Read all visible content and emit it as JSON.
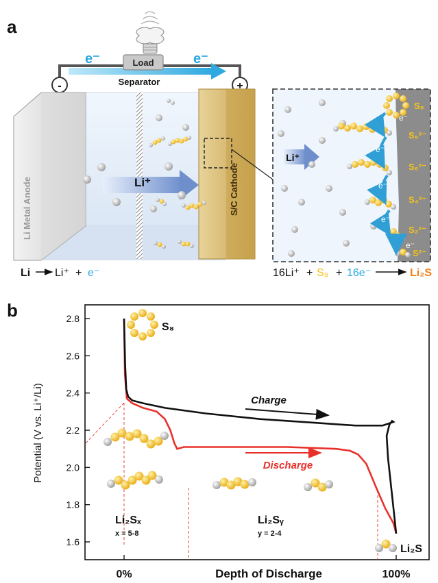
{
  "panel_a": {
    "label": "a",
    "electron_left": "e⁻",
    "electron_right": "e⁻",
    "load": "Load",
    "minus": "-",
    "plus": "+",
    "separator": "Separator",
    "anode": "Li Metal Anode",
    "cathode": "S/C Cathode",
    "li_ion": "Li⁺",
    "li_ion_zoom": "Li⁺",
    "eq_left": {
      "li": "Li",
      "li_ion": "Li⁺",
      "plus": "+",
      "e": "e⁻"
    },
    "eq_right": {
      "coef": "16Li⁺",
      "plus1": "+",
      "s8": "S₈",
      "plus2": "+",
      "e": "16e⁻",
      "product": "Li₂S"
    },
    "zoom_species": [
      "S₈",
      "S₈²⁻",
      "S₆²⁻",
      "S₄²⁻",
      "S₂²⁻",
      "S²⁻"
    ],
    "zoom_electrons": [
      "e⁻",
      "e⁻",
      "e⁻",
      "e⁻",
      "e⁻"
    ],
    "colors": {
      "electron": "#29a8e0",
      "sulfur": "#f5c21b",
      "lithium": "#c8c8c8",
      "product": "#f07f1a"
    }
  },
  "panel_b": {
    "label": "b",
    "ylabel": "Potential (V vs. Li⁺/Li)",
    "xlabel": "Depth of Discharge",
    "xticks": [
      "0%",
      "100%"
    ],
    "yticks": [
      "1.6",
      "1.8",
      "2.0",
      "2.2",
      "2.4",
      "2.6",
      "2.8"
    ],
    "charge": "Charge",
    "discharge": "Discharge",
    "s8": "S₈",
    "li2sx": "Li₂Sₓ",
    "li2sx_range": "x = 5-8",
    "li2sy": "Li₂Sᵧ",
    "li2sy_range": "y = 2-4",
    "li2s": "Li₂S"
  },
  "chart_data": {
    "type": "line",
    "title": "",
    "xlabel": "Depth of Discharge",
    "ylabel": "Potential (V vs. Li⁺/Li)",
    "xlim": [
      0,
      100
    ],
    "ylim": [
      1.55,
      2.85
    ],
    "series": [
      {
        "name": "Discharge",
        "color": "#e8302a",
        "x": [
          0,
          0.3,
          1,
          3,
          7,
          12,
          15,
          17,
          18.5,
          19.5,
          22,
          40,
          60,
          78,
          83,
          86,
          89,
          93,
          96,
          99,
          100
        ],
        "y": [
          2.8,
          2.5,
          2.37,
          2.345,
          2.32,
          2.3,
          2.26,
          2.2,
          2.13,
          2.1,
          2.11,
          2.11,
          2.11,
          2.1,
          2.09,
          2.07,
          2.02,
          1.88,
          1.78,
          1.7,
          1.645
        ]
      },
      {
        "name": "Charge",
        "color": "#111111",
        "x": [
          100,
          98.5,
          97,
          96.5,
          97.5,
          98.5,
          99,
          95,
          85,
          70,
          50,
          30,
          15,
          7,
          3,
          1.5,
          0.8,
          0.4,
          0
        ],
        "y": [
          1.645,
          1.85,
          2.05,
          2.17,
          2.23,
          2.25,
          2.245,
          2.225,
          2.225,
          2.24,
          2.26,
          2.29,
          2.32,
          2.345,
          2.36,
          2.38,
          2.42,
          2.55,
          2.8
        ]
      }
    ]
  }
}
